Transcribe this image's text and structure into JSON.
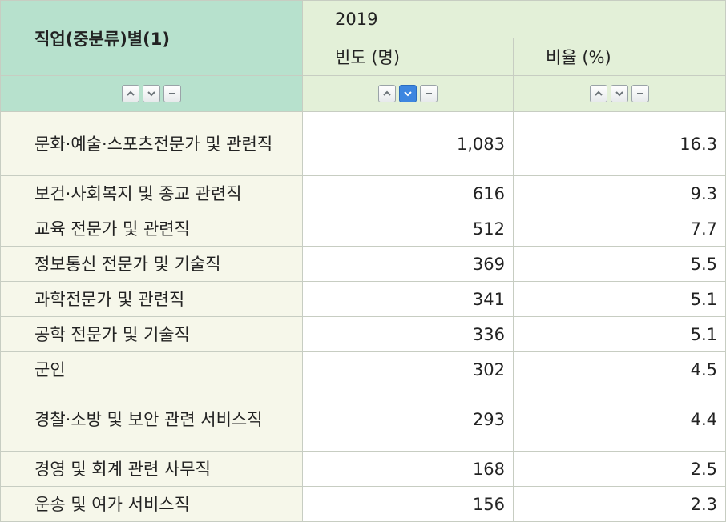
{
  "header": {
    "stub_label": "직업(중분류)별(1)",
    "year": "2019",
    "col_freq": "빈도 (명)",
    "col_ratio": "비율 (%)"
  },
  "sort_icons": [
    "sort-ascending-icon",
    "sort-descending-icon",
    "sort-reset-icon"
  ],
  "colors": {
    "stub_header": "#b7e1cd",
    "col_header": "#e3f0d8",
    "row_label": "#f6f7ea",
    "active_sort": "#3d86e0"
  },
  "rows": [
    {
      "label": "문화·예술·스포츠전문가 및 관련직",
      "freq": "1,083",
      "ratio": "16.3"
    },
    {
      "label": "보건·사회복지 및 종교 관련직",
      "freq": "616",
      "ratio": "9.3"
    },
    {
      "label": "교육 전문가 및 관련직",
      "freq": "512",
      "ratio": "7.7"
    },
    {
      "label": "정보통신 전문가 및 기술직",
      "freq": "369",
      "ratio": "5.5"
    },
    {
      "label": "과학전문가 및 관련직",
      "freq": "341",
      "ratio": "5.1"
    },
    {
      "label": "공학 전문가 및 기술직",
      "freq": "336",
      "ratio": "5.1"
    },
    {
      "label": "군인",
      "freq": "302",
      "ratio": "4.5"
    },
    {
      "label": "경찰·소방 및 보안 관련 서비스직",
      "freq": "293",
      "ratio": "4.4"
    },
    {
      "label": "경영 및 회계 관련 사무직",
      "freq": "168",
      "ratio": "2.5"
    },
    {
      "label": "운송 및 여가 서비스직",
      "freq": "156",
      "ratio": "2.3"
    }
  ]
}
